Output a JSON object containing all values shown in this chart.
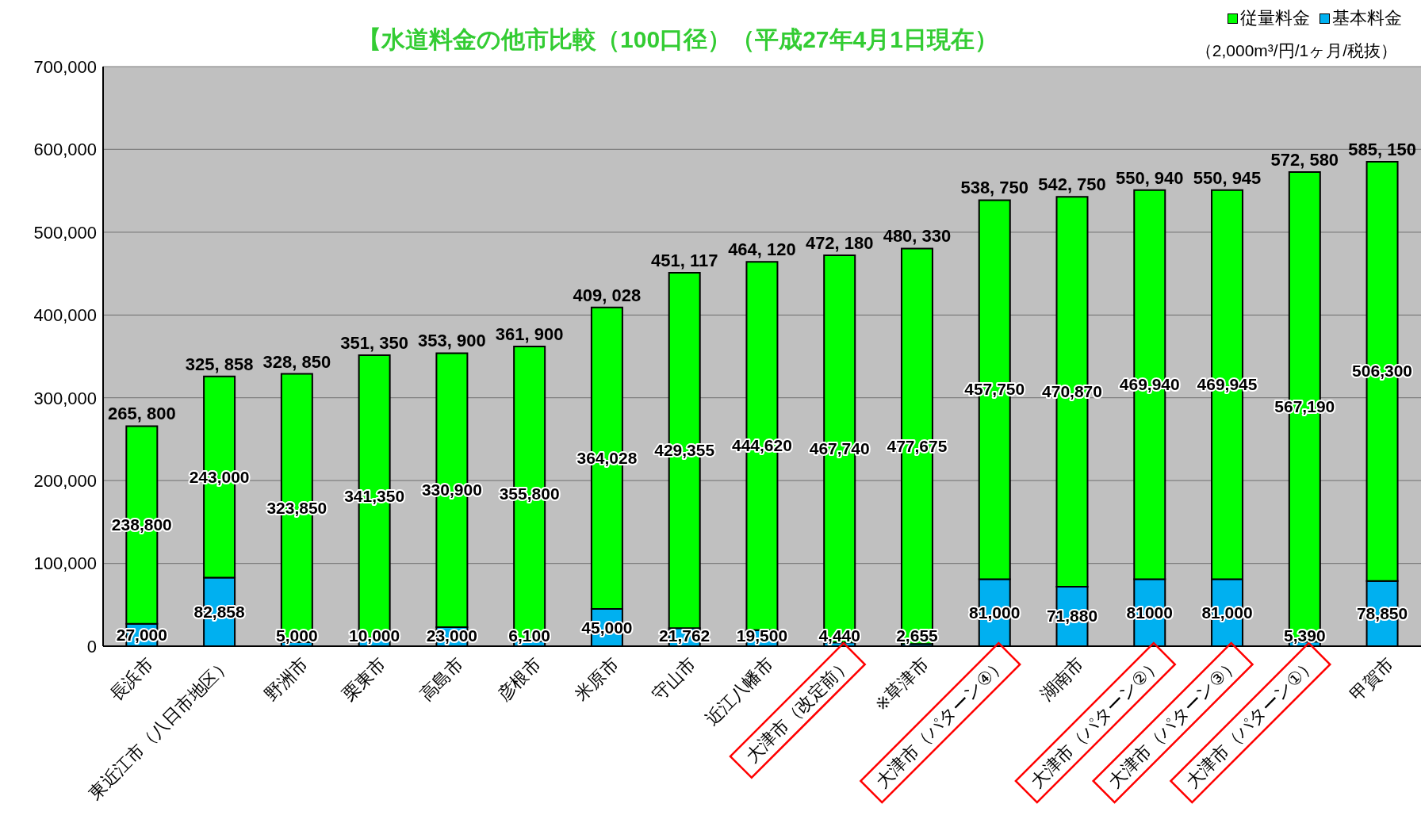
{
  "chart_data": {
    "type": "bar",
    "title": "【水道料金の他市比較（100口径）（平成27年4月1日現在）",
    "subtitle": "（2,000m³/円/1ヶ月/税抜）",
    "categories": [
      "長浜市",
      "東近江市（八日市地区）",
      "野洲市",
      "栗東市",
      "高島市",
      "彦根市",
      "米原市",
      "守山市",
      "近江八幡市",
      "大津市（改定前）",
      "※草津市",
      "大津市（パターン④）",
      "湖南市",
      "大津市（パターン②）",
      "大津市（パターン③）",
      "大津市（パターン①）",
      "甲賀市"
    ],
    "series": [
      {
        "name": "基本料金",
        "color": "#00b0f0",
        "values": [
          27000,
          82858,
          5000,
          10000,
          23000,
          6100,
          45000,
          21762,
          19500,
          4440,
          2655,
          81000,
          71880,
          81000,
          81000,
          5390,
          78850
        ],
        "value_labels": [
          "27,000",
          "82,858",
          "5,000",
          "10,000",
          "23,000",
          "6,100",
          "45,000",
          "21,762",
          "19,500",
          "4,440",
          "2,655",
          "81,000",
          "71,880",
          "81000",
          "81,000",
          "5,390",
          "78,850"
        ]
      },
      {
        "name": "従量料金",
        "color": "#00ff00",
        "values": [
          238800,
          243000,
          323850,
          341350,
          330900,
          355800,
          364028,
          429355,
          444620,
          467740,
          477675,
          457750,
          470870,
          469940,
          469945,
          567190,
          506300
        ],
        "value_labels": [
          "238,800",
          "243,000",
          "323,850",
          "341,350",
          "330,900",
          "355,800",
          "364,028",
          "429,355",
          "444,620",
          "467,740",
          "477,675",
          "457,750",
          "470,870",
          "469,940",
          "469,945",
          "567,190",
          "506,300"
        ]
      }
    ],
    "stacked": true,
    "totals": [
      "265, 800",
      "325, 858",
      "328, 850",
      "351, 350",
      "353, 900",
      "361, 900",
      "409, 028",
      "451, 117",
      "464, 120",
      "472, 180",
      "480, 330",
      "538, 750",
      "542, 750",
      "550, 940",
      "550, 945",
      "572, 580",
      "585, 150"
    ],
    "ylim": [
      0,
      700000
    ],
    "yticks": [
      {
        "value": 0,
        "label": "0"
      },
      {
        "value": 100000,
        "label": "100,000"
      },
      {
        "value": 200000,
        "label": "200,000"
      },
      {
        "value": 300000,
        "label": "300,000"
      },
      {
        "value": 400000,
        "label": "400,000"
      },
      {
        "value": 500000,
        "label": "500,000"
      },
      {
        "value": 600000,
        "label": "600,000"
      },
      {
        "value": 700000,
        "label": "700,000"
      }
    ],
    "grid": "y",
    "legend": "top right"
  }
}
